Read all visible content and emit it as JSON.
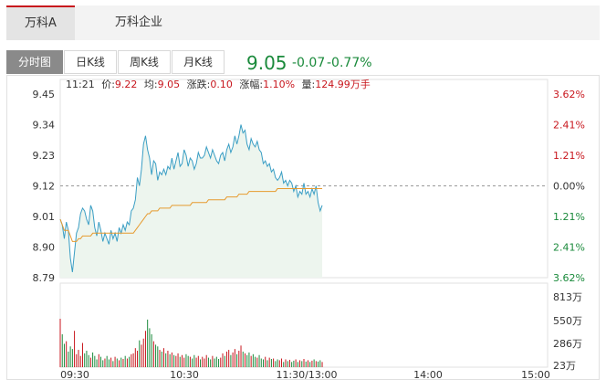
{
  "tabs": [
    {
      "label": "万科A",
      "active": true
    },
    {
      "label": "万科企业",
      "active": false
    }
  ],
  "k_tabs": [
    {
      "label": "分时图",
      "active": true
    },
    {
      "label": "日K线",
      "active": false
    },
    {
      "label": "周K线",
      "active": false
    },
    {
      "label": "月K线",
      "active": false
    }
  ],
  "quote": {
    "price": "9.05",
    "change": "-0.07",
    "change_pct": "-0.77%"
  },
  "info": {
    "time": "11:21",
    "price_label": "价:",
    "price": "9.22",
    "avg_label": "均:",
    "avg": "9.05",
    "chg_label": "涨跌:",
    "chg": "0.10",
    "chgpct_label": "涨幅:",
    "chgpct": "1.10%",
    "vol_label": "量:",
    "vol": "124.99万手"
  },
  "colors": {
    "up": "#c8161d",
    "down": "#1a8a3b",
    "price_line": "#3a9ec4",
    "avg_line": "#e69a2e",
    "area": "#edf5ee"
  },
  "chart_data": {
    "type": "line",
    "prev_close": 9.12,
    "y_ticks": [
      "9.45",
      "9.34",
      "9.23",
      "9.12",
      "9.01",
      "8.90",
      "8.79"
    ],
    "pct_ticks": [
      "3.62%",
      "2.41%",
      "1.21%",
      "0.00%",
      "1.21%",
      "2.41%",
      "3.62%"
    ],
    "vol_ticks": [
      "813万",
      "550万",
      "286万",
      "23万"
    ],
    "x_ticks": [
      "09:30",
      "10:30",
      "11:30/13:00",
      "14:00",
      "15:00"
    ],
    "price_series": [
      9.0,
      8.98,
      8.93,
      8.99,
      8.96,
      8.86,
      8.81,
      8.88,
      8.95,
      8.97,
      9.02,
      9.04,
      9.03,
      9.0,
      8.98,
      9.05,
      9.03,
      8.97,
      8.94,
      8.99,
      8.96,
      8.92,
      8.95,
      8.93,
      8.91,
      8.96,
      8.93,
      8.95,
      8.92,
      8.97,
      8.95,
      8.98,
      8.96,
      8.99,
      8.98,
      9.03,
      9.04,
      9.07,
      9.15,
      9.12,
      9.18,
      9.27,
      9.3,
      9.25,
      9.22,
      9.16,
      9.21,
      9.2,
      9.14,
      9.17,
      9.16,
      9.18,
      9.16,
      9.19,
      9.18,
      9.22,
      9.18,
      9.21,
      9.24,
      9.19,
      9.2,
      9.25,
      9.23,
      9.19,
      9.22,
      9.21,
      9.18,
      9.2,
      9.24,
      9.22,
      9.22,
      9.23,
      9.26,
      9.24,
      9.22,
      9.25,
      9.23,
      9.21,
      9.2,
      9.23,
      9.24,
      9.21,
      9.25,
      9.27,
      9.24,
      9.26,
      9.3,
      9.27,
      9.3,
      9.34,
      9.31,
      9.32,
      9.27,
      9.25,
      9.29,
      9.27,
      9.26,
      9.28,
      9.25,
      9.24,
      9.2,
      9.21,
      9.19,
      9.2,
      9.17,
      9.18,
      9.15,
      9.14,
      9.15,
      9.17,
      9.13,
      9.14,
      9.12,
      9.14,
      9.13,
      9.1,
      9.12,
      9.08,
      9.1,
      9.09,
      9.13,
      9.09,
      9.1,
      9.08,
      9.11,
      9.09,
      9.12,
      9.06,
      9.03,
      9.05
    ],
    "avg_series": [
      9.0,
      8.98,
      8.96,
      8.96,
      8.96,
      8.94,
      8.92,
      8.92,
      8.92,
      8.93,
      8.93,
      8.94,
      8.94,
      8.94,
      8.94,
      8.94,
      8.95,
      8.95,
      8.95,
      8.95,
      8.95,
      8.95,
      8.95,
      8.95,
      8.95,
      8.95,
      8.95,
      8.95,
      8.95,
      8.95,
      8.95,
      8.95,
      8.95,
      8.95,
      8.95,
      8.95,
      8.95,
      8.96,
      8.97,
      8.98,
      8.99,
      9.0,
      9.01,
      9.02,
      9.02,
      9.03,
      9.03,
      9.03,
      9.03,
      9.04,
      9.04,
      9.04,
      9.04,
      9.04,
      9.04,
      9.05,
      9.05,
      9.05,
      9.05,
      9.05,
      9.05,
      9.05,
      9.05,
      9.05,
      9.05,
      9.06,
      9.06,
      9.06,
      9.06,
      9.06,
      9.06,
      9.06,
      9.06,
      9.07,
      9.07,
      9.07,
      9.07,
      9.07,
      9.07,
      9.07,
      9.07,
      9.07,
      9.08,
      9.08,
      9.08,
      9.08,
      9.08,
      9.08,
      9.09,
      9.09,
      9.09,
      9.09,
      9.09,
      9.1,
      9.1,
      9.1,
      9.1,
      9.1,
      9.1,
      9.1,
      9.1,
      9.1,
      9.1,
      9.1,
      9.1,
      9.1,
      9.1,
      9.11,
      9.11,
      9.11,
      9.11,
      9.11,
      9.11,
      9.11,
      9.11,
      9.11,
      9.11,
      9.11,
      9.11,
      9.11,
      9.11,
      9.11,
      9.11,
      9.11,
      9.11,
      9.11,
      9.11,
      9.11,
      9.11,
      9.11
    ],
    "volume_series": [
      560,
      380,
      270,
      300,
      180,
      240,
      210,
      420,
      150,
      200,
      130,
      280,
      160,
      190,
      140,
      110,
      170,
      130,
      90,
      150,
      120,
      80,
      100,
      130,
      90,
      110,
      70,
      120,
      100,
      80,
      110,
      95,
      130,
      100,
      120,
      150,
      160,
      220,
      190,
      310,
      260,
      330,
      420,
      550,
      450,
      380,
      300,
      260,
      240,
      200,
      180,
      220,
      160,
      190,
      150,
      170,
      140,
      130,
      160,
      120,
      140,
      110,
      150,
      130,
      120,
      100,
      140,
      110,
      130,
      90,
      120,
      100,
      140,
      110,
      90,
      130,
      100,
      120,
      95,
      110,
      160,
      130,
      180,
      200,
      140,
      170,
      210,
      150,
      190,
      250,
      180,
      160,
      140,
      170,
      130,
      150,
      120,
      110,
      140,
      100,
      90,
      120,
      80,
      110,
      95,
      100,
      70,
      90,
      80,
      100,
      60,
      90,
      70,
      85,
      60,
      75,
      90,
      60,
      80,
      70,
      95,
      65,
      80,
      60,
      75,
      90,
      70,
      65,
      80,
      60
    ]
  }
}
